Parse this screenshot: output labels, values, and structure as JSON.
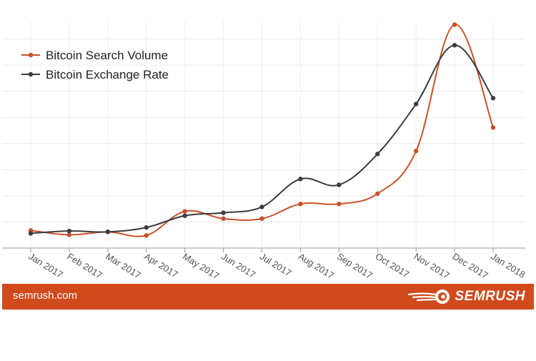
{
  "chart_data": {
    "type": "line",
    "categories": [
      "Jan 2017",
      "Feb 2017",
      "Mar 2017",
      "Apr 2017",
      "May 2017",
      "Jun 2017",
      "Jul 2017",
      "Aug 2017",
      "Sep 2017",
      "Oct 2017",
      "Nov 2017",
      "Dec 2017",
      "Jan 2018"
    ],
    "series": [
      {
        "name": "Bitcoin Search Volume",
        "color": "#c9512a",
        "values": [
          6,
          4.5,
          5.5,
          4.3,
          12.5,
          10,
          10,
          15,
          15,
          18.5,
          33,
          76,
          41
        ]
      },
      {
        "name": "Bitcoin Exchange Rate",
        "color": "#3c3c3c",
        "values": [
          5,
          5.8,
          5.5,
          7,
          11,
          12,
          14,
          23.5,
          21.5,
          32,
          49,
          69,
          51
        ]
      }
    ],
    "ylim": [
      0,
      80
    ],
    "legend": "top-left",
    "grid": true
  },
  "footer": {
    "site": "semrush.com",
    "brand": "SEMRUSH",
    "bg_color": "#d14a1c"
  }
}
